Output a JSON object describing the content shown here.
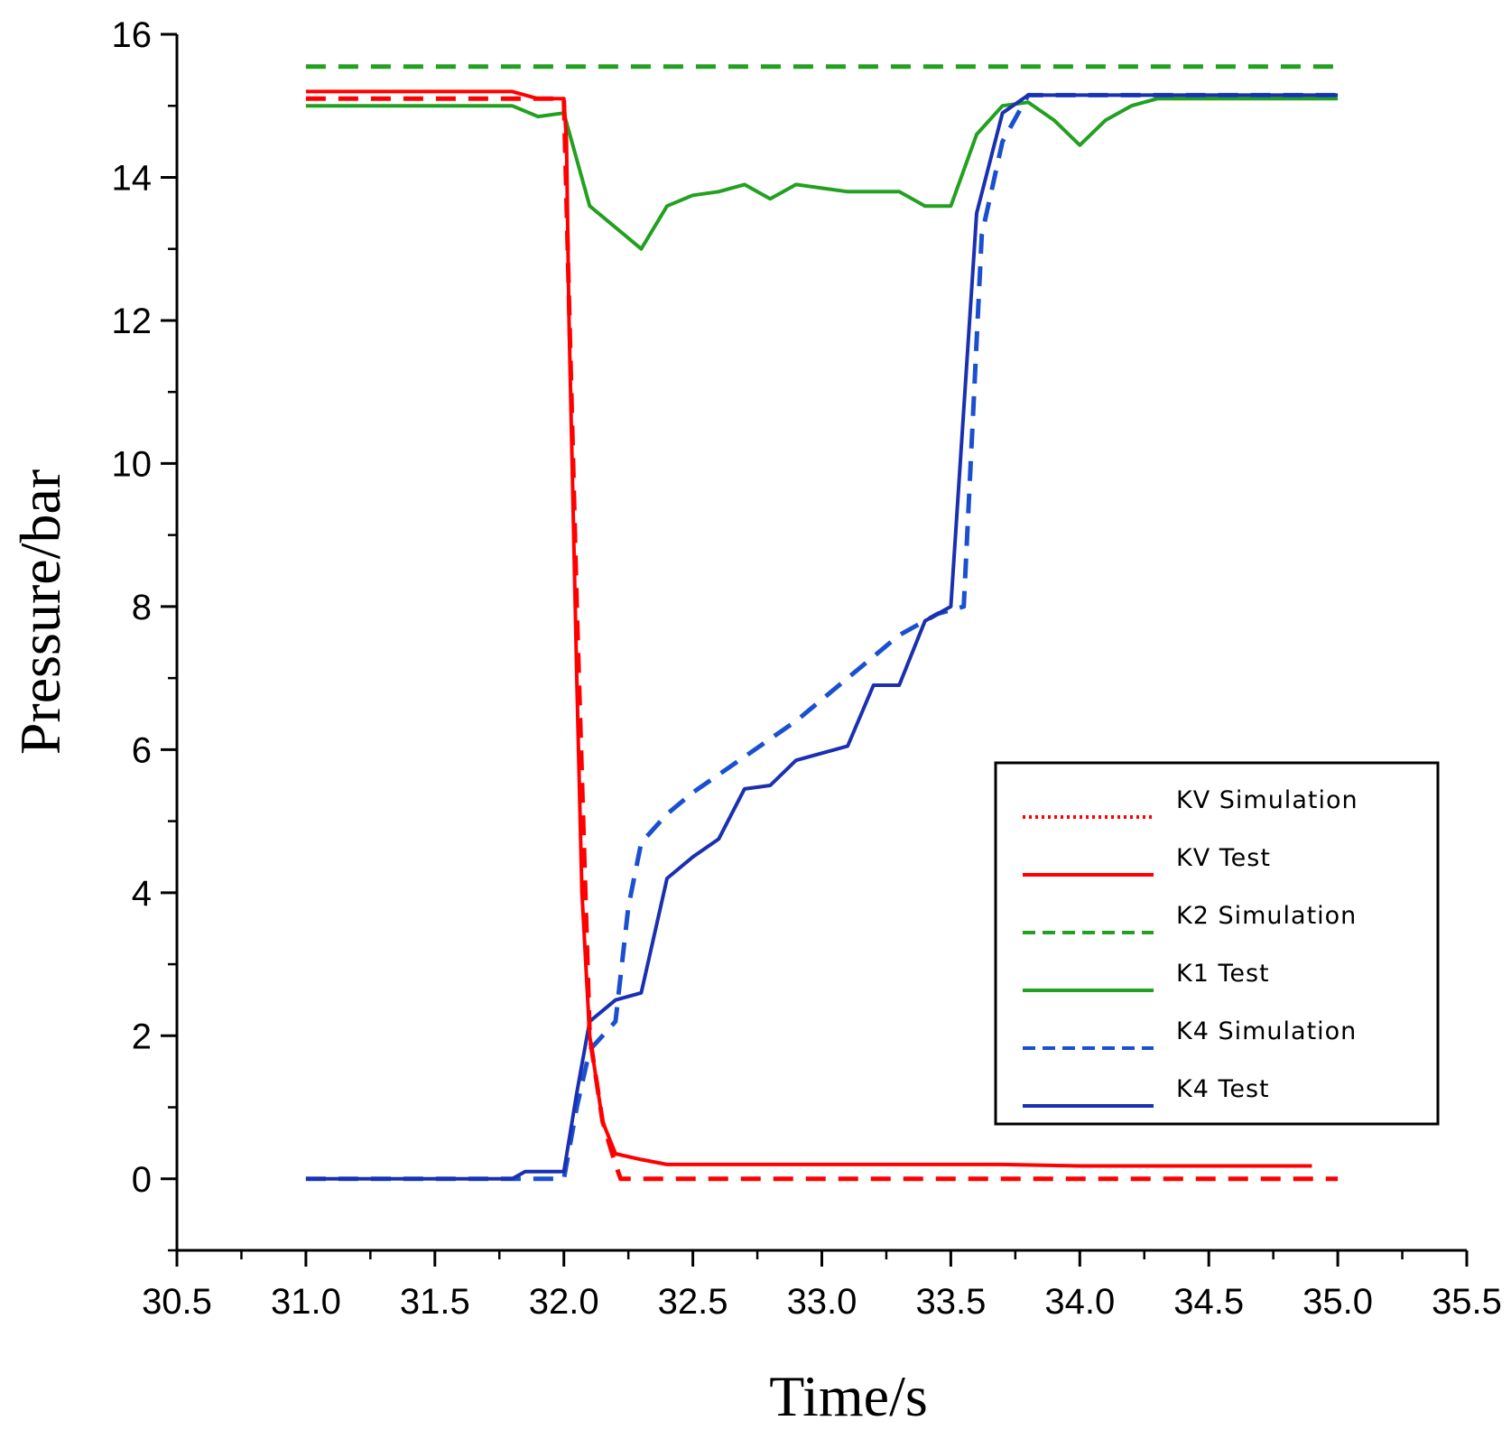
{
  "chart_data": {
    "type": "line",
    "title": "",
    "xlabel": "Time/s",
    "ylabel": "Pressure/bar",
    "xlim": [
      30.5,
      35.5
    ],
    "ylim": [
      -1,
      16
    ],
    "x_ticks": [
      "30.5",
      "31.0",
      "31.5",
      "32.0",
      "32.5",
      "33.0",
      "33.5",
      "34.0",
      "34.5",
      "35.0",
      "35.5"
    ],
    "y_ticks": [
      "0",
      "2",
      "4",
      "6",
      "8",
      "10",
      "12",
      "14",
      "16"
    ],
    "grid": false,
    "legend_position": "lower-right",
    "series": [
      {
        "name": "KV Simulation",
        "color": "#ff0000",
        "style": "dashed",
        "x": [
          31.0,
          31.95,
          32.0,
          32.05,
          32.1,
          32.15,
          32.2,
          32.22,
          32.3,
          35.0
        ],
        "y": [
          15.1,
          15.1,
          15.1,
          8.0,
          2.0,
          0.8,
          0.2,
          0.0,
          0.0,
          0.0
        ]
      },
      {
        "name": "KV Test",
        "color": "#ff0000",
        "style": "solid",
        "x": [
          31.0,
          31.8,
          31.9,
          31.95,
          32.0,
          32.01,
          32.02,
          32.05,
          32.07,
          32.1,
          32.15,
          32.2,
          32.3,
          32.4,
          32.7,
          33.0,
          33.4,
          33.7,
          34.0,
          34.5,
          34.9
        ],
        "y": [
          15.2,
          15.2,
          15.1,
          15.1,
          15.1,
          14.5,
          12.0,
          7.0,
          4.0,
          2.0,
          0.8,
          0.35,
          0.27,
          0.2,
          0.2,
          0.2,
          0.2,
          0.2,
          0.18,
          0.18,
          0.18
        ]
      },
      {
        "name": "K2 Simulation",
        "color": "#22a020",
        "style": "dashed",
        "x": [
          31.0,
          35.0
        ],
        "y": [
          15.55,
          15.55
        ]
      },
      {
        "name": "K1 Test",
        "color": "#22a020",
        "style": "solid",
        "x": [
          31.0,
          31.8,
          31.9,
          32.0,
          32.1,
          32.2,
          32.3,
          32.4,
          32.5,
          32.6,
          32.7,
          32.8,
          32.9,
          33.0,
          33.1,
          33.2,
          33.3,
          33.4,
          33.5,
          33.6,
          33.7,
          33.8,
          33.9,
          34.0,
          34.1,
          34.2,
          34.3,
          34.5,
          35.0
        ],
        "y": [
          15.0,
          15.0,
          14.85,
          14.9,
          13.6,
          13.3,
          13.0,
          13.6,
          13.75,
          13.8,
          13.9,
          13.7,
          13.9,
          13.85,
          13.8,
          13.8,
          13.8,
          13.6,
          13.6,
          14.6,
          15.0,
          15.05,
          14.8,
          14.45,
          14.8,
          15.0,
          15.1,
          15.1,
          15.1
        ]
      },
      {
        "name": "K4 Simulation",
        "color": "#1a50d0",
        "style": "dashed",
        "x": [
          31.0,
          31.95,
          32.0,
          32.05,
          32.1,
          32.2,
          32.25,
          32.3,
          32.4,
          32.5,
          32.7,
          32.9,
          33.1,
          33.3,
          33.45,
          33.55,
          33.62,
          33.7,
          33.8,
          35.0
        ],
        "y": [
          0.0,
          0.0,
          0.0,
          1.0,
          1.8,
          2.2,
          3.8,
          4.7,
          5.1,
          5.4,
          5.9,
          6.4,
          7.0,
          7.6,
          7.9,
          8.0,
          13.2,
          14.5,
          15.15,
          15.15
        ]
      },
      {
        "name": "K4 Test",
        "color": "#1a30b0",
        "style": "solid",
        "x": [
          31.0,
          31.8,
          31.85,
          32.0,
          32.05,
          32.1,
          32.2,
          32.3,
          32.4,
          32.5,
          32.6,
          32.7,
          32.8,
          32.9,
          33.0,
          33.1,
          33.2,
          33.3,
          33.4,
          33.5,
          33.6,
          33.7,
          33.8,
          34.0,
          35.0
        ],
        "y": [
          0.0,
          0.0,
          0.1,
          0.1,
          1.2,
          2.2,
          2.5,
          2.6,
          4.2,
          4.5,
          4.75,
          5.45,
          5.5,
          5.85,
          5.95,
          6.05,
          6.9,
          6.9,
          7.8,
          8.0,
          13.5,
          14.9,
          15.15,
          15.15,
          15.15
        ]
      }
    ]
  }
}
